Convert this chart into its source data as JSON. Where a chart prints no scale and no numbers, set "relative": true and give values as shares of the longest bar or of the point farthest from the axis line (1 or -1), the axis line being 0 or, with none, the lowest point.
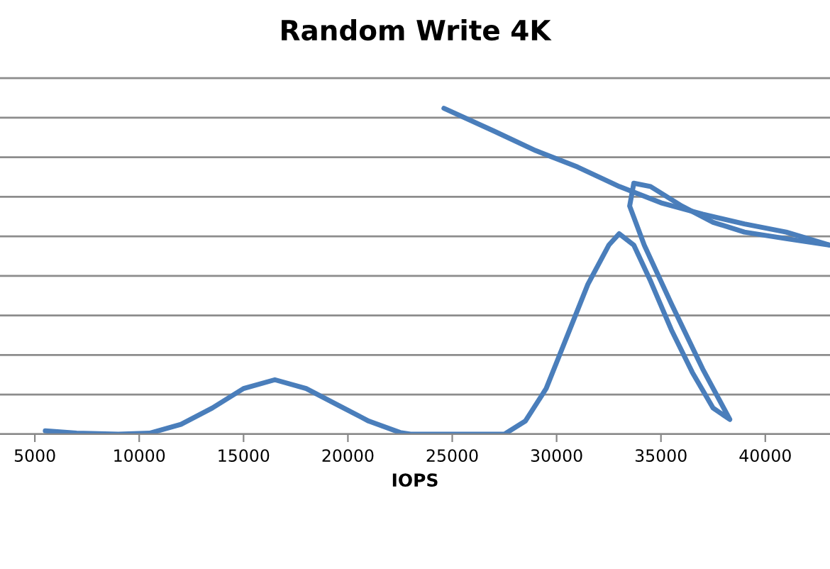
{
  "chart_data": {
    "type": "line",
    "title": "Random Write 4K",
    "xlabel": "IOPS",
    "relative": true,
    "tick_labels": "x",
    "grid": "y",
    "marker": "none",
    "line_style": "solid",
    "xlim": [
      3330,
      43100
    ],
    "xticks": [
      5000,
      10000,
      15000,
      20000,
      25000,
      30000,
      35000,
      40000
    ],
    "series": [
      {
        "color": "#4a7ebb",
        "x": [
          5500,
          7000,
          9000,
          10500,
          12000,
          13500,
          15000,
          16500,
          18000,
          19500,
          21000,
          22500,
          23000,
          25000,
          27500,
          28500,
          29500,
          30500,
          31500,
          32500,
          33000,
          33700,
          34500,
          35500,
          36500,
          37500,
          38300,
          37000,
          35500,
          34200,
          33500,
          33700,
          34500,
          36000,
          37500,
          39000,
          41000,
          43100
        ],
        "values": [
          0.01,
          0.003,
          0,
          0.003,
          0.03,
          0.08,
          0.14,
          0.167,
          0.14,
          0.09,
          0.04,
          0.005,
          0,
          0,
          0,
          0.04,
          0.14,
          0.3,
          0.46,
          0.58,
          0.615,
          0.58,
          0.47,
          0.32,
          0.19,
          0.08,
          0.045,
          0.2,
          0.4,
          0.58,
          0.7,
          0.77,
          0.76,
          0.7,
          0.65,
          0.62,
          0.6,
          0.58
        ]
      },
      {
        "color": "#4a7ebb",
        "x": [
          24600,
          27000,
          29000,
          31000,
          33000,
          35000,
          37000,
          39000,
          41000,
          43100
        ],
        "values": [
          1.0,
          0.93,
          0.87,
          0.82,
          0.76,
          0.71,
          0.675,
          0.645,
          0.62,
          0.58
        ]
      }
    ]
  }
}
